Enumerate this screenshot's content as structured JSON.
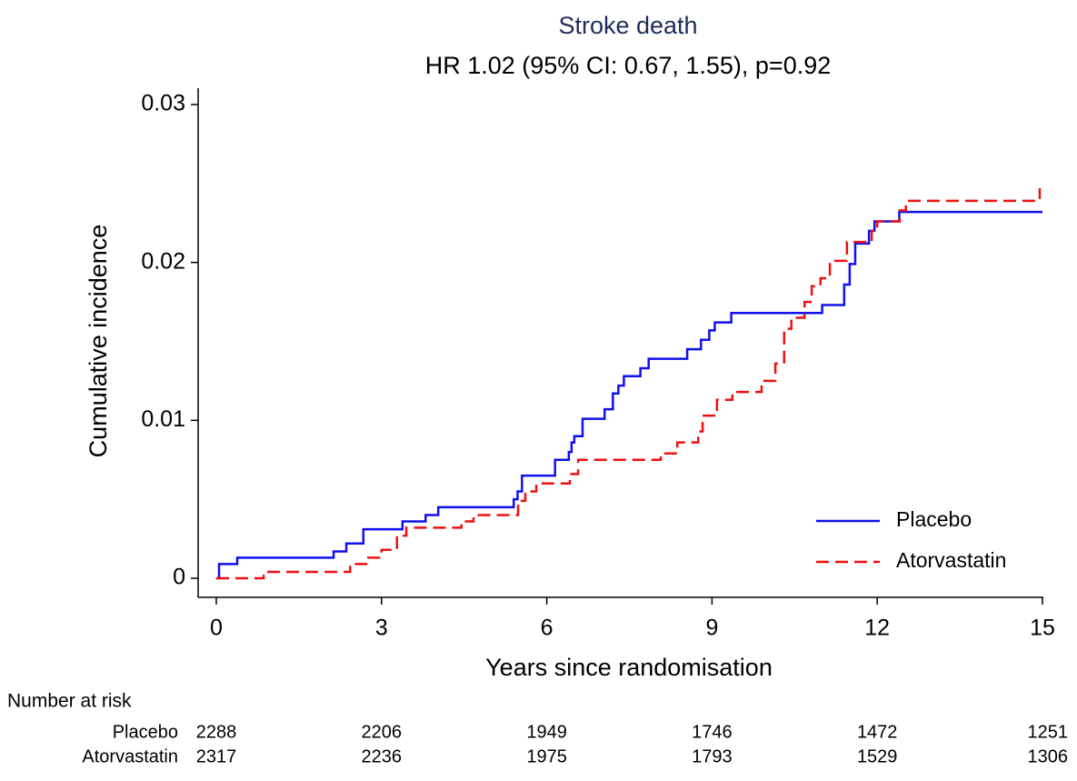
{
  "chart_data": {
    "type": "line",
    "step": "post",
    "title": "Stroke death",
    "subtitle": "HR 1.02 (95% CI: 0.67, 1.55), p=0.92",
    "x_label": "Years since randomisation",
    "y_label": "Cumulative incidence",
    "xlim": [
      0,
      15
    ],
    "xticks": [
      0,
      3,
      6,
      9,
      12,
      15
    ],
    "ylim": [
      0,
      0.03
    ],
    "yticks": [
      0,
      0.01,
      0.02,
      0.03
    ],
    "legend": "bottom-right",
    "series": [
      {
        "name": "Placebo",
        "color": "#1010ee",
        "dash": false,
        "x": [
          0,
          0.05,
          0.38,
          2.13,
          2.36,
          2.67,
          3.38,
          3.8,
          4.03,
          5.4,
          5.47,
          5.55,
          6.15,
          6.4,
          6.45,
          6.5,
          6.65,
          7.05,
          7.2,
          7.3,
          7.4,
          7.7,
          7.85,
          8.55,
          8.8,
          8.95,
          9.05,
          9.35,
          11.0,
          11.4,
          11.5,
          11.6,
          11.85,
          11.95,
          12.4,
          15
        ],
        "values": [
          0,
          0.0009,
          0.0013,
          0.0017,
          0.0022,
          0.0031,
          0.0036,
          0.004,
          0.0045,
          0.005,
          0.0055,
          0.0065,
          0.0075,
          0.008,
          0.0086,
          0.009,
          0.0101,
          0.0107,
          0.0117,
          0.0122,
          0.0128,
          0.0133,
          0.0139,
          0.0145,
          0.0151,
          0.0157,
          0.0162,
          0.0168,
          0.0173,
          0.0186,
          0.0199,
          0.0212,
          0.022,
          0.0226,
          0.0232,
          0.0232
        ]
      },
      {
        "name": "Atorvastatin",
        "color": "#ee1010",
        "dash": true,
        "x": [
          0,
          0.86,
          2.43,
          2.76,
          3.0,
          3.28,
          3.45,
          4.45,
          4.67,
          5.48,
          5.61,
          5.81,
          6.42,
          6.57,
          8.07,
          8.37,
          8.75,
          8.83,
          9.09,
          9.37,
          9.9,
          10.15,
          10.31,
          10.44,
          10.68,
          10.81,
          10.97,
          11.14,
          11.45,
          11.9,
          12.0,
          12.41,
          12.52,
          14.93,
          14.95
        ],
        "values": [
          0,
          0.0004,
          0.0009,
          0.0013,
          0.0018,
          0.0027,
          0.0032,
          0.0036,
          0.004,
          0.0049,
          0.0055,
          0.006,
          0.0066,
          0.0075,
          0.0079,
          0.0086,
          0.0093,
          0.0103,
          0.0113,
          0.0118,
          0.0125,
          0.0136,
          0.0158,
          0.0165,
          0.0175,
          0.0185,
          0.019,
          0.0201,
          0.0213,
          0.022,
          0.0226,
          0.0233,
          0.0239,
          0.0239,
          0.0247
        ]
      }
    ],
    "risk_table": {
      "title": "Number at risk",
      "rows": [
        {
          "name": "Placebo",
          "values": [
            2288,
            2206,
            1949,
            1746,
            1472,
            1251
          ]
        },
        {
          "name": "Atorvastatin",
          "values": [
            2317,
            2236,
            1975,
            1793,
            1529,
            1306
          ]
        }
      ]
    }
  }
}
